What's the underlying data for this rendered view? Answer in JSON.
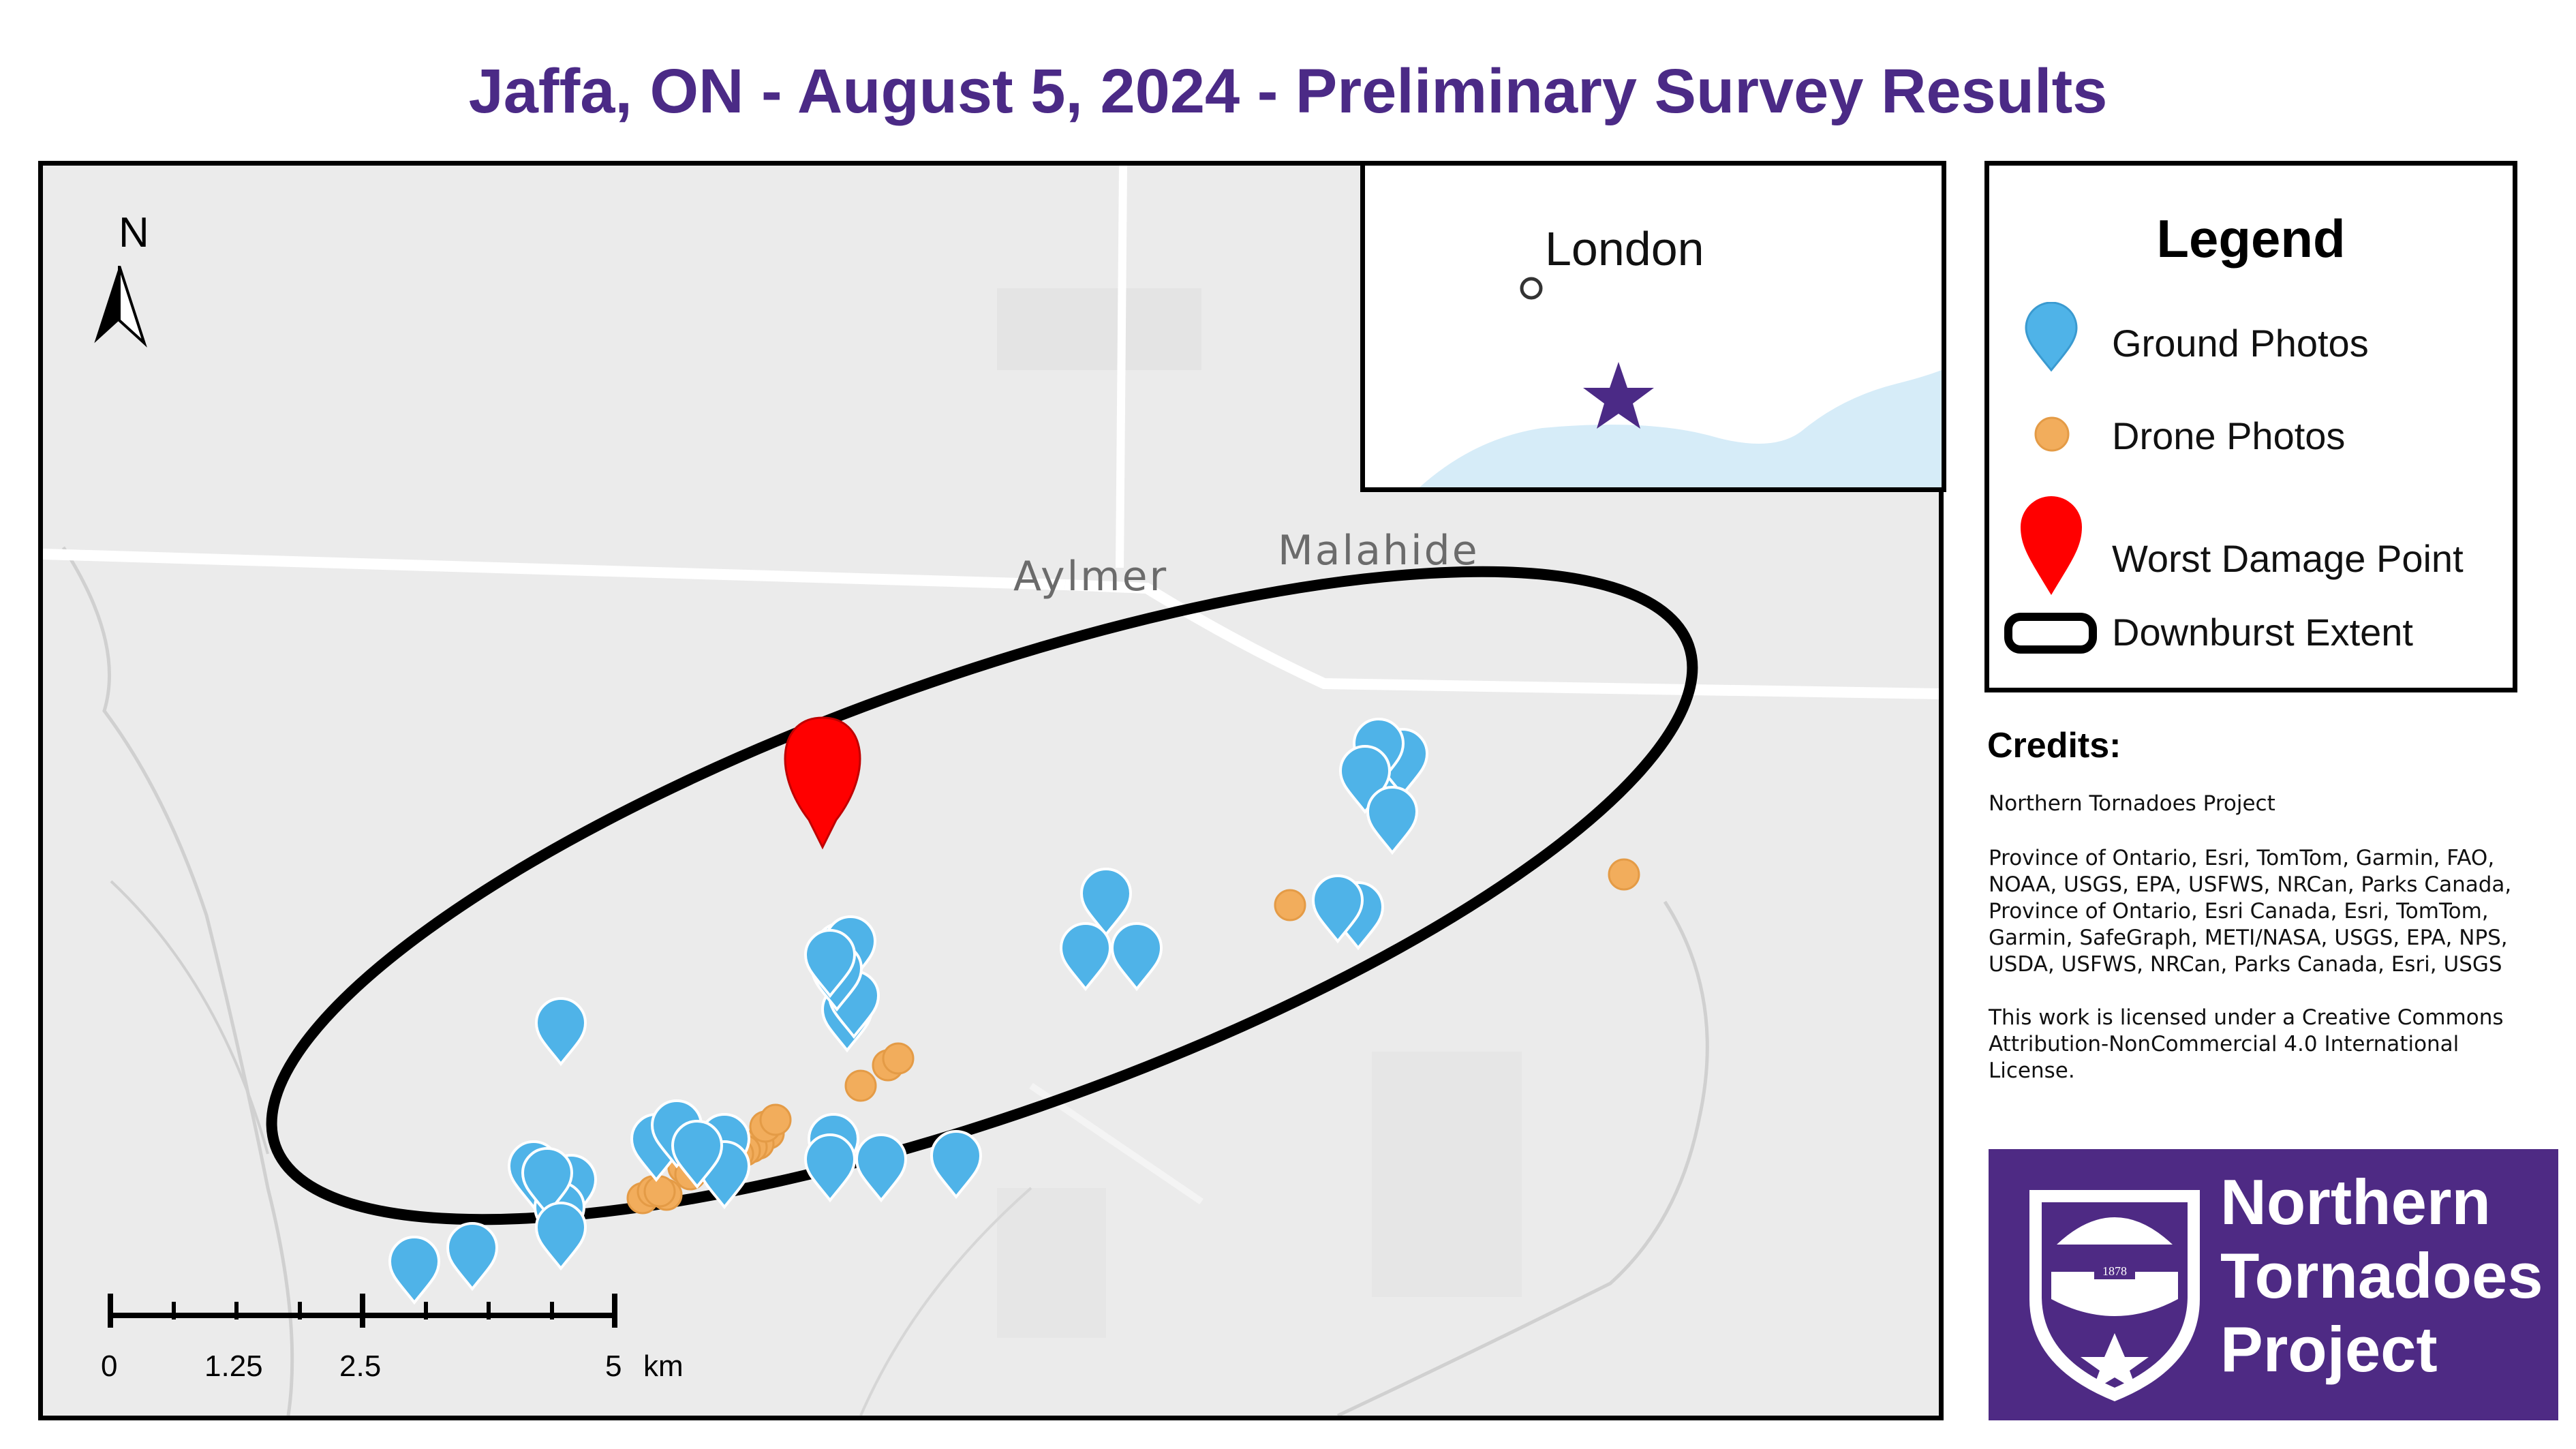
{
  "title": "Jaffa, ON - August 5, 2024 - Preliminary Survey Results",
  "north_label": "N",
  "map": {
    "place_labels": [
      "Aylmer",
      "Malahide"
    ],
    "ground_photos_count": 34,
    "drone_photos_count": 26,
    "marker_colors": {
      "ground": "#4fb3e8",
      "drone": "#f2ad5c",
      "worst": "#ff0000",
      "extent": "#000000"
    }
  },
  "inset": {
    "city": "London",
    "star_color": "#4b2a86",
    "water_color": "#d6ecf8"
  },
  "legend": {
    "title": "Legend",
    "items": [
      {
        "label": "Ground Photos",
        "icon": "blue-pin-icon"
      },
      {
        "label": "Drone Photos",
        "icon": "orange-dot-icon"
      },
      {
        "label": "Worst Damage Point",
        "icon": "red-pin-icon"
      },
      {
        "label": "Downburst Extent",
        "icon": "black-outline-icon"
      }
    ]
  },
  "credits": {
    "title": "Credits:",
    "lines": [
      "Northern Tornadoes Project",
      "Province of Ontario, Esri, TomTom, Garmin, FAO, NOAA, USGS, EPA, USFWS, NRCan, Parks Canada, Province of Ontario, Esri Canada, Esri, TomTom, Garmin, SafeGraph, METI/NASA, USGS, EPA, NPS, USDA, USFWS, NRCan, Parks Canada, Esri, USGS",
      "This work is licensed under a Creative Commons Attribution-NonCommercial 4.0 International License."
    ]
  },
  "scale": {
    "labels": [
      "0",
      "1.25",
      "2.5",
      "5",
      "km"
    ]
  },
  "logo": {
    "lines": [
      "Northern",
      "Tornadoes",
      "Project"
    ],
    "seal_year": "1878",
    "background": "#4e2a84"
  }
}
